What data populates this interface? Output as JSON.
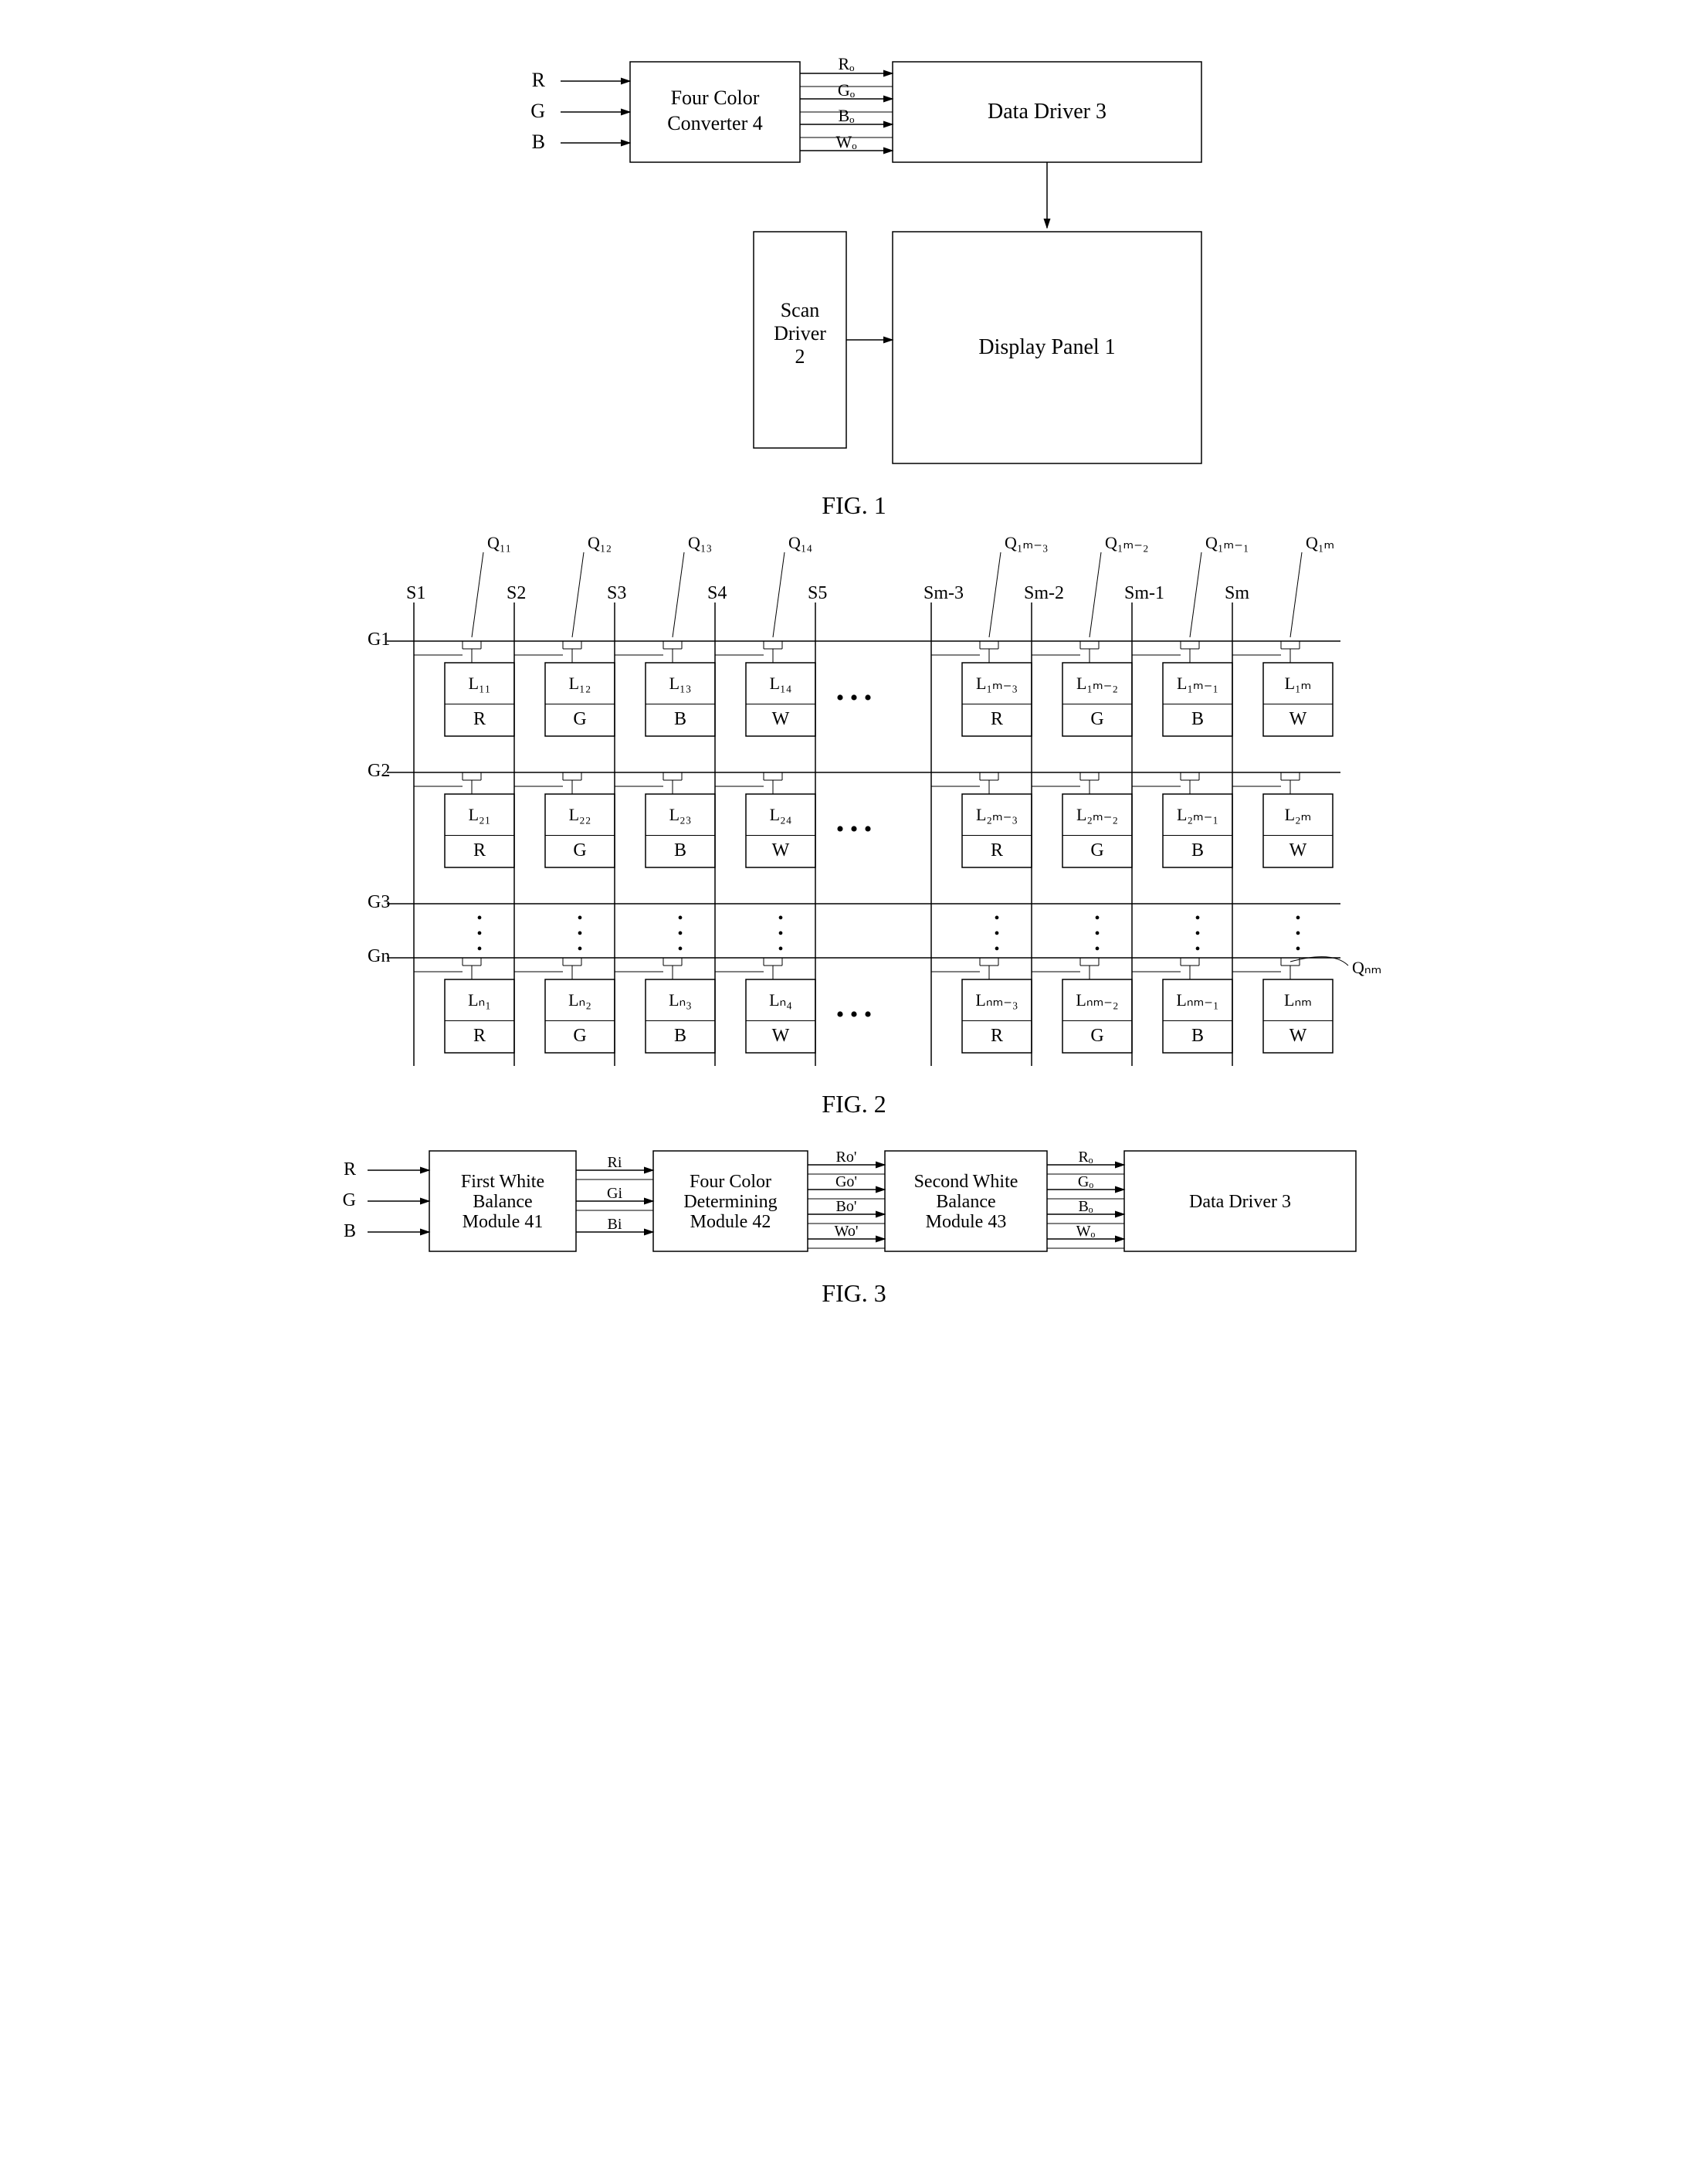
{
  "fig1": {
    "caption": "FIG. 1",
    "inputs": [
      "R",
      "G",
      "B"
    ],
    "outputs": [
      "Rₒ",
      "Gₒ",
      "Bₒ",
      "Wₒ"
    ],
    "blocks": {
      "converter": "Four Color\nConverter 4",
      "datadriver": "Data Driver 3",
      "scandriver": "Scan\nDriver\n2",
      "displaypanel": "Display Panel 1"
    }
  },
  "fig2": {
    "caption": "FIG. 2",
    "q_labels": [
      "Q₁₁",
      "Q₁₂",
      "Q₁₃",
      "Q₁₄",
      "Q₁ₘ₋₃",
      "Q₁ₘ₋₂",
      "Q₁ₘ₋₁",
      "Q₁ₘ"
    ],
    "q_last": "Qₙₘ",
    "s_labels": [
      "S1",
      "S2",
      "S3",
      "S4",
      "S5",
      "Sm-3",
      "Sm-2",
      "Sm-1",
      "Sm"
    ],
    "g_labels": [
      "G1",
      "G2",
      "G3",
      "Gn"
    ],
    "colors": [
      "R",
      "G",
      "B",
      "W",
      "R",
      "G",
      "B",
      "W"
    ],
    "row1_L": [
      "L₁₁",
      "L₁₂",
      "L₁₃",
      "L₁₄",
      "L₁ₘ₋₃",
      "L₁ₘ₋₂",
      "L₁ₘ₋₁",
      "L₁ₘ"
    ],
    "row2_L": [
      "L₂₁",
      "L₂₂",
      "L₂₃",
      "L₂₄",
      "L₂ₘ₋₃",
      "L₂ₘ₋₂",
      "L₂ₘ₋₁",
      "L₂ₘ"
    ],
    "rown_L": [
      "Lₙ₁",
      "Lₙ₂",
      "Lₙ₃",
      "Lₙ₄",
      "Lₙₘ₋₃",
      "Lₙₘ₋₂",
      "Lₙₘ₋₁",
      "Lₙₘ"
    ]
  },
  "fig3": {
    "caption": "FIG. 3",
    "inputs": [
      "R",
      "G",
      "B"
    ],
    "stage1_out": [
      "Ri",
      "Gi",
      "Bi"
    ],
    "stage2_out": [
      "Ro'",
      "Go'",
      "Bo'",
      "Wo'"
    ],
    "stage3_out": [
      "Rₒ",
      "Gₒ",
      "Bₒ",
      "Wₒ"
    ],
    "blocks": {
      "b1": "First White\nBalance\nModule 41",
      "b2": "Four Color\nDetermining\nModule 42",
      "b3": "Second White\nBalance\nModule 43",
      "b4": "Data Driver 3"
    }
  },
  "style": {
    "bg": "#ffffff",
    "stroke": "#000000",
    "font": "Times New Roman",
    "caption_size": 32,
    "label_size": 22,
    "small_size": 18
  }
}
